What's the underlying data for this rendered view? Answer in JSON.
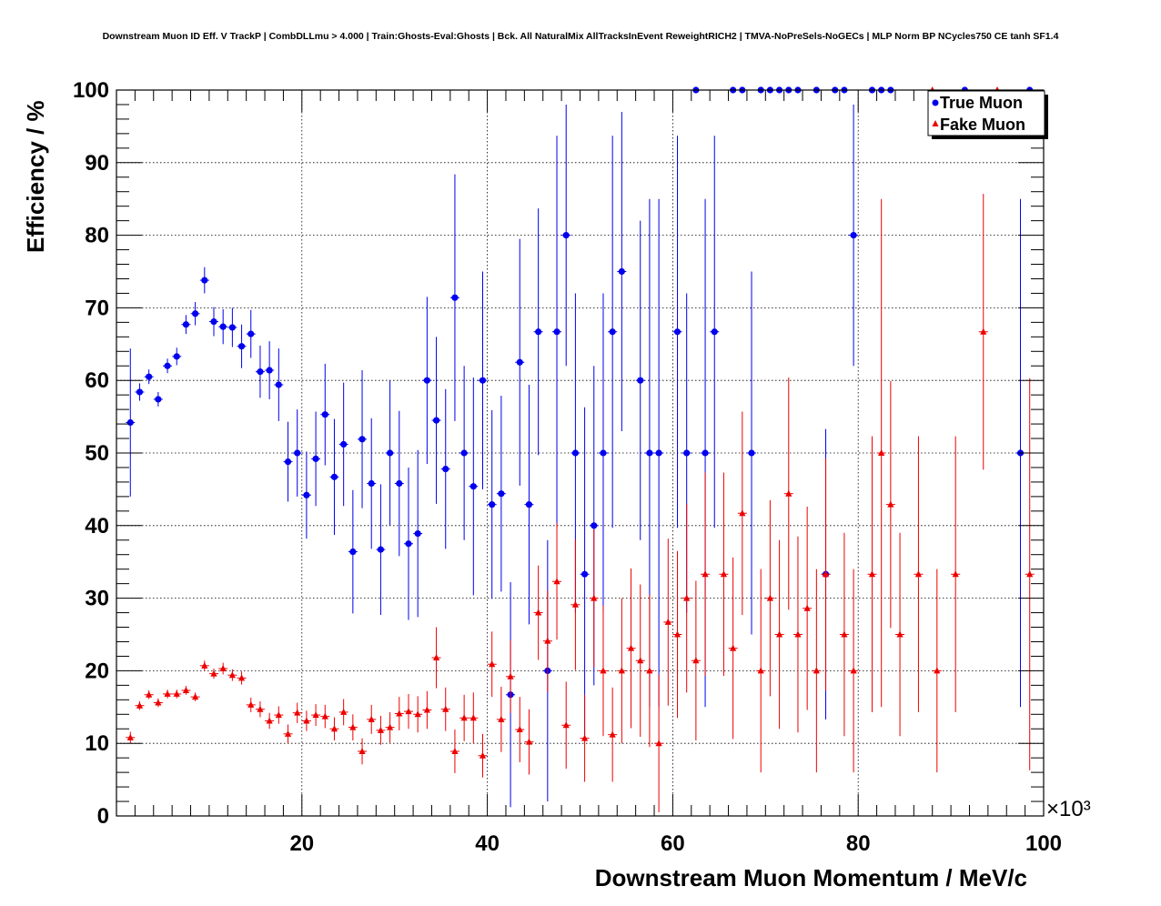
{
  "chart_data": {
    "type": "scatter",
    "title": "Downstream Muon ID Eff. V TrackP | CombDLLmu > 4.000 | Train:Ghosts-Eval:Ghosts | Bck. All NaturalMix AllTracksInEvent ReweightRICH2 | TMVA-NoPreSels-NoGECs | MLP Norm BP NCycles750 CE tanh SF1.4",
    "xlabel": "Downstream Muon Momentum / MeV/c",
    "ylabel": "Efficiency / %",
    "x_multiplier": "×10³",
    "xlim": [
      0,
      100
    ],
    "ylim": [
      0,
      100
    ],
    "x_units_note": "x in thousands of MeV/c",
    "x_ticks": [
      20,
      40,
      60,
      80,
      100
    ],
    "y_ticks": [
      0,
      10,
      20,
      30,
      40,
      50,
      60,
      70,
      80,
      90,
      100
    ],
    "grid": true,
    "legend_position": "top-right",
    "series": [
      {
        "name": "True Muon",
        "color": "#0000ee",
        "marker": "circle",
        "points": [
          [
            1.5,
            54.2,
            10.2
          ],
          [
            2.5,
            58.4,
            1.2
          ],
          [
            3.5,
            60.5,
            1.0
          ],
          [
            4.5,
            57.4,
            1.0
          ],
          [
            5.5,
            62.0,
            1.0
          ],
          [
            6.5,
            63.3,
            1.2
          ],
          [
            7.5,
            67.7,
            1.3
          ],
          [
            8.5,
            69.2,
            1.6
          ],
          [
            9.5,
            73.8,
            1.8
          ],
          [
            10.5,
            68.1,
            2.0
          ],
          [
            11.5,
            67.4,
            2.4
          ],
          [
            12.5,
            67.3,
            2.7
          ],
          [
            13.5,
            64.7,
            3.0
          ],
          [
            14.5,
            66.4,
            3.3
          ],
          [
            15.5,
            61.2,
            3.6
          ],
          [
            16.5,
            61.4,
            4.0
          ],
          [
            17.5,
            59.4,
            5.0
          ],
          [
            18.5,
            48.8,
            5.5
          ],
          [
            19.5,
            50.0,
            6.0
          ],
          [
            20.5,
            44.2,
            6.0
          ],
          [
            21.5,
            49.2,
            6.5
          ],
          [
            22.5,
            55.3,
            7.0
          ],
          [
            23.5,
            46.7,
            8.0
          ],
          [
            24.5,
            51.2,
            8.5
          ],
          [
            25.5,
            36.4,
            8.5
          ],
          [
            26.5,
            51.9,
            9.5
          ],
          [
            27.5,
            45.8,
            9.0
          ],
          [
            28.5,
            36.7,
            9.0
          ],
          [
            29.5,
            50.0,
            10.0
          ],
          [
            30.5,
            45.8,
            10.0
          ],
          [
            31.5,
            37.5,
            10.5
          ],
          [
            32.5,
            38.9,
            11.5
          ],
          [
            33.5,
            60.0,
            11.5
          ],
          [
            34.5,
            54.5,
            11.5
          ],
          [
            35.5,
            47.8,
            11.0
          ],
          [
            36.5,
            71.4,
            17.0
          ],
          [
            37.5,
            50.0,
            12.0
          ],
          [
            38.5,
            45.4,
            15.0
          ],
          [
            39.5,
            60.0,
            15.0
          ],
          [
            40.5,
            42.9,
            13.0
          ],
          [
            41.5,
            44.4,
            13.5
          ],
          [
            42.5,
            16.7,
            15.5
          ],
          [
            43.5,
            62.5,
            17.0
          ],
          [
            44.5,
            42.9,
            16.5
          ],
          [
            45.5,
            66.7,
            17.0
          ],
          [
            46.5,
            20.0,
            18.0
          ],
          [
            47.5,
            66.7,
            27.0
          ],
          [
            48.5,
            80.0,
            18.0
          ],
          [
            49.5,
            50.0,
            22.0
          ],
          [
            50.5,
            33.3,
            23.0
          ],
          [
            51.5,
            40.0,
            22.0
          ],
          [
            52.5,
            50.0,
            22.0
          ],
          [
            53.5,
            66.7,
            27.0
          ],
          [
            54.5,
            75.0,
            22.0
          ],
          [
            56.5,
            60.0,
            22.0
          ],
          [
            57.5,
            50.0,
            35.0
          ],
          [
            58.5,
            50.0,
            35.0
          ],
          [
            60.5,
            66.7,
            27.0
          ],
          [
            61.5,
            50.0,
            22.0
          ],
          [
            62.5,
            100.0,
            0
          ],
          [
            63.5,
            50.0,
            35.0
          ],
          [
            64.5,
            66.7,
            27.0
          ],
          [
            66.5,
            100.0,
            0
          ],
          [
            67.5,
            100.0,
            0
          ],
          [
            68.5,
            50.0,
            25.0
          ],
          [
            69.5,
            100.0,
            0
          ],
          [
            70.5,
            100.0,
            0
          ],
          [
            71.5,
            100.0,
            0
          ],
          [
            72.5,
            100.0,
            0
          ],
          [
            73.5,
            100.0,
            0
          ],
          [
            75.5,
            100.0,
            0
          ],
          [
            76.5,
            33.3,
            20.0
          ],
          [
            77.5,
            100.0,
            0
          ],
          [
            78.5,
            100.0,
            0
          ],
          [
            79.5,
            80.0,
            18.0
          ],
          [
            81.5,
            100.0,
            0
          ],
          [
            82.5,
            100.0,
            0
          ],
          [
            83.5,
            100.0,
            0
          ],
          [
            91.5,
            100.0,
            0
          ],
          [
            97.5,
            50.0,
            35.0
          ],
          [
            98.5,
            100.0,
            0
          ]
        ]
      },
      {
        "name": "Fake Muon",
        "color": "#ee0000",
        "marker": "triangle",
        "points": [
          [
            1.5,
            10.8,
            0.8
          ],
          [
            2.5,
            15.2,
            0.6
          ],
          [
            3.5,
            16.7,
            0.6
          ],
          [
            4.5,
            15.6,
            0.6
          ],
          [
            5.5,
            16.8,
            0.6
          ],
          [
            6.5,
            16.8,
            0.6
          ],
          [
            7.5,
            17.3,
            0.6
          ],
          [
            8.5,
            16.4,
            0.6
          ],
          [
            9.5,
            20.7,
            0.7
          ],
          [
            10.5,
            19.6,
            0.7
          ],
          [
            11.5,
            20.3,
            0.8
          ],
          [
            12.5,
            19.4,
            0.8
          ],
          [
            13.5,
            19.0,
            0.9
          ],
          [
            14.5,
            15.3,
            1.0
          ],
          [
            15.5,
            14.7,
            1.1
          ],
          [
            16.5,
            13.1,
            1.1
          ],
          [
            17.5,
            13.9,
            1.2
          ],
          [
            18.5,
            11.3,
            1.3
          ],
          [
            19.5,
            14.2,
            1.4
          ],
          [
            20.5,
            13.1,
            1.4
          ],
          [
            21.5,
            13.9,
            1.5
          ],
          [
            22.5,
            13.7,
            1.6
          ],
          [
            23.5,
            12.0,
            1.6
          ],
          [
            24.5,
            14.3,
            1.8
          ],
          [
            25.5,
            12.2,
            1.8
          ],
          [
            26.5,
            8.9,
            1.8
          ],
          [
            27.5,
            13.3,
            2.0
          ],
          [
            28.5,
            11.8,
            2.0
          ],
          [
            29.5,
            12.2,
            2.1
          ],
          [
            30.5,
            14.1,
            2.3
          ],
          [
            31.5,
            14.4,
            2.4
          ],
          [
            32.5,
            14.0,
            2.5
          ],
          [
            33.5,
            14.6,
            2.6
          ],
          [
            34.5,
            21.8,
            4.2
          ],
          [
            35.5,
            14.7,
            3.0
          ],
          [
            36.5,
            8.9,
            3.0
          ],
          [
            37.5,
            13.5,
            3.2
          ],
          [
            38.5,
            13.5,
            3.5
          ],
          [
            39.5,
            8.3,
            3.0
          ],
          [
            40.5,
            20.9,
            4.5
          ],
          [
            41.5,
            13.3,
            4.5
          ],
          [
            42.5,
            19.2,
            5.0
          ],
          [
            43.5,
            11.9,
            4.5
          ],
          [
            44.5,
            10.2,
            4.5
          ],
          [
            45.5,
            28.0,
            6.5
          ],
          [
            46.5,
            24.1,
            7.0
          ],
          [
            47.5,
            32.3,
            8.0
          ],
          [
            48.5,
            12.5,
            6.0
          ],
          [
            49.5,
            29.1,
            9.0
          ],
          [
            50.5,
            10.7,
            6.0
          ],
          [
            51.5,
            30.0,
            9.5
          ],
          [
            52.5,
            20.0,
            9.0
          ],
          [
            53.5,
            11.2,
            6.5
          ],
          [
            54.5,
            20.0,
            10.0
          ],
          [
            55.5,
            23.1,
            11.0
          ],
          [
            56.5,
            21.4,
            10.5
          ],
          [
            57.5,
            20.0,
            10.5
          ],
          [
            58.5,
            10.0,
            9.5
          ],
          [
            59.5,
            26.7,
            11.5
          ],
          [
            60.5,
            25.0,
            11.5
          ],
          [
            61.5,
            30.0,
            13.0
          ],
          [
            62.5,
            21.4,
            11.0
          ],
          [
            63.5,
            33.3,
            14.0
          ],
          [
            65.5,
            33.3,
            14.0
          ],
          [
            66.5,
            23.1,
            12.5
          ],
          [
            67.5,
            41.7,
            14.0
          ],
          [
            69.5,
            20.0,
            14.0
          ],
          [
            70.5,
            30.0,
            13.5
          ],
          [
            71.5,
            25.0,
            13.0
          ],
          [
            72.5,
            44.4,
            16.0
          ],
          [
            73.5,
            25.0,
            13.5
          ],
          [
            74.5,
            28.6,
            14.0
          ],
          [
            75.5,
            20.0,
            14.0
          ],
          [
            76.5,
            33.3,
            16.0
          ],
          [
            78.5,
            25.0,
            14.0
          ],
          [
            79.5,
            20.0,
            14.0
          ],
          [
            81.5,
            33.3,
            19.0
          ],
          [
            82.5,
            50.0,
            35.0
          ],
          [
            83.5,
            42.9,
            17.0
          ],
          [
            84.5,
            25.0,
            14.0
          ],
          [
            86.5,
            33.3,
            19.0
          ],
          [
            88.5,
            20.0,
            14.0
          ],
          [
            90.5,
            33.3,
            19.0
          ],
          [
            93.5,
            66.7,
            19.0
          ],
          [
            98.5,
            33.3,
            27.0
          ],
          [
            88.0,
            100.0,
            0
          ],
          [
            95.0,
            100.0,
            0
          ]
        ]
      }
    ]
  }
}
